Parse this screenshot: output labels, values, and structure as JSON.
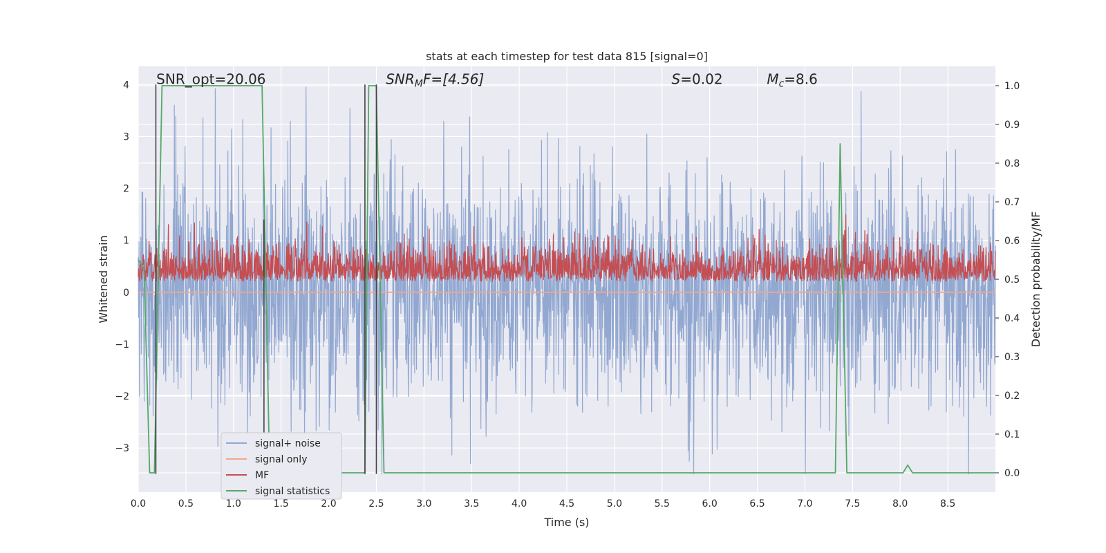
{
  "chart_data": {
    "type": "line",
    "title": "stats at each timestep for test data 815 [signal=0]",
    "xlabel": "Time (s)",
    "ylabel_left": "Whitened strain",
    "ylabel_right": "Detection probability/MF",
    "xlim": [
      0,
      9
    ],
    "ylim_left": [
      -3.85,
      4.35
    ],
    "ylim_right": [
      -0.05,
      1.05
    ],
    "x_ticks": [
      "0.0",
      "0.5",
      "1.0",
      "1.5",
      "2.0",
      "2.5",
      "3.0",
      "3.5",
      "4.0",
      "4.5",
      "5.0",
      "5.5",
      "6.0",
      "6.5",
      "7.0",
      "7.5",
      "8.0",
      "8.5"
    ],
    "y_ticks_left": [
      "−3",
      "−2",
      "−1",
      "0",
      "1",
      "2",
      "3",
      "4"
    ],
    "y_ticks_right": [
      "0.0",
      "0.1",
      "0.2",
      "0.3",
      "0.4",
      "0.5",
      "0.6",
      "0.7",
      "0.8",
      "0.9",
      "1.0"
    ],
    "grid": true,
    "legend_position": "lower-left",
    "annotations": [
      {
        "text": "SNR_opt=20.06",
        "x": 0.19,
        "y": 4.0
      },
      {
        "text": "SNR",
        "sub": "M",
        "tail": "F=[4.56]",
        "x": 2.6,
        "y": 4.0,
        "italic": true
      },
      {
        "text": "S",
        "tail": "=0.02",
        "x": 5.6,
        "y": 4.0,
        "italic": true
      },
      {
        "text": "M",
        "sub": "c",
        "tail": "=8.6",
        "x": 6.6,
        "y": 4.0,
        "italic": true
      }
    ],
    "series": [
      {
        "name": "signal+ noise",
        "color": "#92a8d1",
        "axis": "left",
        "kind": "noise",
        "amplitude": 1.1,
        "fs": 256
      },
      {
        "name": "signal only",
        "color": "#f0a88a",
        "axis": "left",
        "kind": "flat",
        "value": 0
      },
      {
        "name": "MF",
        "color": "#c44e52",
        "axis": "right",
        "kind": "mf",
        "base": 0.5,
        "amplitude": 0.05,
        "fs": 256
      },
      {
        "name": "signal statistics",
        "color": "#55a868",
        "axis": "right",
        "x": [
          0.0,
          0.06,
          0.12,
          0.17,
          0.25,
          1.3,
          1.38,
          1.45,
          2.38,
          2.42,
          2.48,
          2.5,
          2.58,
          7.32,
          7.37,
          7.44,
          8.03,
          8.08,
          8.13,
          9.0
        ],
        "y": [
          0.55,
          0.53,
          0.0,
          0.0,
          1.0,
          1.0,
          0.0,
          0.0,
          0.0,
          1.0,
          1.0,
          1.0,
          0.0,
          0.0,
          0.85,
          0.0,
          0.0,
          0.02,
          0.0,
          0.0
        ]
      }
    ],
    "vlines": [
      {
        "x": 0.185,
        "y0": -3.5,
        "y1": 4.0,
        "color": "#444444"
      },
      {
        "x": 1.32,
        "y0": -3.5,
        "y1": 1.4,
        "color": "#444444"
      },
      {
        "x": 2.38,
        "y0": -3.5,
        "y1": 4.0,
        "color": "#444444"
      },
      {
        "x": 2.5,
        "y0": -3.5,
        "y1": 4.0,
        "color": "#444444"
      }
    ]
  }
}
